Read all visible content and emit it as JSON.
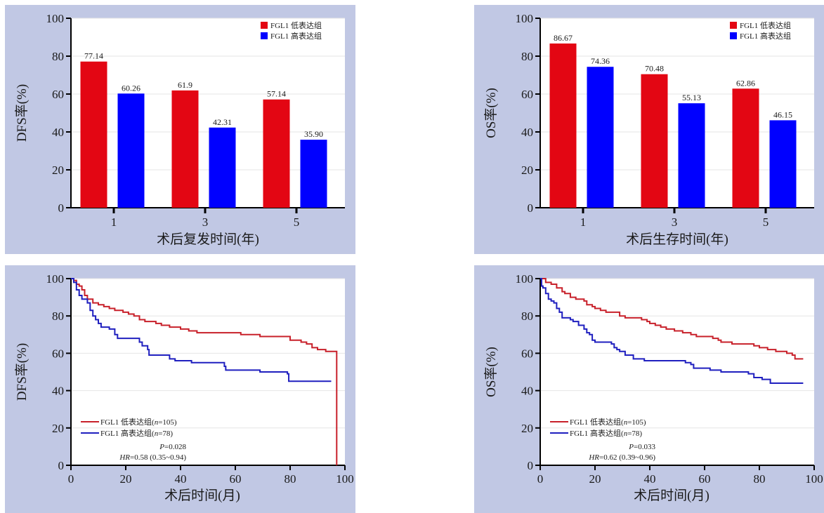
{
  "colors": {
    "panel_bg": "#c1c8e4",
    "plot_bg": "#ffffff",
    "low_bar": "#e30613",
    "high_bar": "#0000ff",
    "low_curve": "#c8202a",
    "high_curve": "#1f1fbf"
  },
  "chart_data": [
    {
      "id": "dfs-bar",
      "type": "bar",
      "categories": [
        "1",
        "3",
        "5"
      ],
      "series": [
        {
          "name": "FGL1 低表达组",
          "values": [
            77.14,
            61.9,
            57.14
          ],
          "labels": [
            "77.14",
            "61.9",
            "57.14"
          ]
        },
        {
          "name": "FGL1 高表达组",
          "values": [
            60.26,
            42.31,
            35.9
          ],
          "labels": [
            "60.26",
            "42.31",
            "35.90"
          ]
        }
      ],
      "xlabel": "术后复发时间(年)",
      "ylabel": "DFS率(%)",
      "ylim": [
        0,
        100
      ],
      "yticks": [
        0,
        20,
        40,
        60,
        80,
        100
      ],
      "grid": true,
      "legend_position": "top-right"
    },
    {
      "id": "os-bar",
      "type": "bar",
      "categories": [
        "1",
        "3",
        "5"
      ],
      "series": [
        {
          "name": "FGL1 低表达组",
          "values": [
            86.67,
            70.48,
            62.86
          ],
          "labels": [
            "86.67",
            "70.48",
            "62.86"
          ]
        },
        {
          "name": "FGL1 高表达组",
          "values": [
            74.36,
            55.13,
            46.15
          ],
          "labels": [
            "74.36",
            "55.13",
            "46.15"
          ]
        }
      ],
      "xlabel": "术后生存时间(年)",
      "ylabel": "OS率(%)",
      "ylim": [
        0,
        100
      ],
      "yticks": [
        0,
        20,
        40,
        60,
        80,
        100
      ],
      "grid": true,
      "legend_position": "top-right"
    },
    {
      "id": "dfs-km",
      "type": "line",
      "step": true,
      "series": [
        {
          "name": "FGL1 低表达组(n=105)",
          "name_prefix": "FGL1 低表达组(",
          "name_italic": "n",
          "name_suffix": "=105)",
          "points": [
            [
              0,
              100
            ],
            [
              1,
              99
            ],
            [
              2,
              97
            ],
            [
              3,
              96
            ],
            [
              4,
              94
            ],
            [
              5,
              91
            ],
            [
              6,
              89
            ],
            [
              8,
              87
            ],
            [
              10,
              86
            ],
            [
              12,
              85
            ],
            [
              14,
              84
            ],
            [
              16,
              83
            ],
            [
              19,
              82
            ],
            [
              21,
              81
            ],
            [
              23,
              80
            ],
            [
              25,
              78
            ],
            [
              27,
              77
            ],
            [
              31,
              76
            ],
            [
              33,
              75
            ],
            [
              36,
              74
            ],
            [
              40,
              73
            ],
            [
              43,
              72
            ],
            [
              46,
              71
            ],
            [
              60,
              71
            ],
            [
              62,
              70
            ],
            [
              69,
              69
            ],
            [
              80,
              67
            ],
            [
              84,
              66
            ],
            [
              86,
              65
            ],
            [
              88,
              63
            ],
            [
              90,
              62
            ],
            [
              93,
              61
            ],
            [
              96,
              61
            ],
            [
              97,
              61
            ],
            [
              97,
              0
            ]
          ]
        },
        {
          "name": "FGL1 高表达组(n=78)",
          "name_prefix": "FGL1 高表达组(",
          "name_italic": "n",
          "name_suffix": "=78)",
          "points": [
            [
              0,
              100
            ],
            [
              1,
              98
            ],
            [
              2,
              94
            ],
            [
              3,
              91
            ],
            [
              4,
              89
            ],
            [
              6,
              87
            ],
            [
              7,
              83
            ],
            [
              8,
              80
            ],
            [
              9,
              78
            ],
            [
              10,
              76
            ],
            [
              11,
              74
            ],
            [
              14,
              73
            ],
            [
              16,
              70
            ],
            [
              17,
              68
            ],
            [
              25,
              66
            ],
            [
              26,
              64
            ],
            [
              28,
              62
            ],
            [
              28.5,
              59
            ],
            [
              36,
              57
            ],
            [
              38,
              56
            ],
            [
              44,
              55
            ],
            [
              56,
              53
            ],
            [
              56.5,
              51
            ],
            [
              69,
              50
            ],
            [
              79,
              49
            ],
            [
              79.5,
              45
            ],
            [
              95,
              45
            ]
          ]
        }
      ],
      "annotations": {
        "p_prefix": "P",
        "p_value": "=0.028",
        "hr_prefix": "HR",
        "hr_value": "=0.58 (0.35~0.94)"
      },
      "xlabel": "术后时间(月)",
      "ylabel": "DFS率(%)",
      "xlim": [
        0,
        100
      ],
      "ylim": [
        0,
        100
      ],
      "xticks": [
        0,
        20,
        40,
        60,
        80,
        100
      ],
      "yticks": [
        0,
        20,
        40,
        60,
        80,
        100
      ],
      "grid": true,
      "legend_position": "bottom-left"
    },
    {
      "id": "os-km",
      "type": "line",
      "step": true,
      "series": [
        {
          "name": "FGL1 低表达组(n=105)",
          "name_prefix": "FGL1 低表达组(",
          "name_italic": "n",
          "name_suffix": "=105)",
          "points": [
            [
              0,
              100
            ],
            [
              2,
              98
            ],
            [
              4,
              97
            ],
            [
              6,
              95
            ],
            [
              8,
              93
            ],
            [
              9,
              92
            ],
            [
              11,
              90
            ],
            [
              13,
              89
            ],
            [
              16,
              88
            ],
            [
              17,
              86
            ],
            [
              19,
              85
            ],
            [
              20,
              84
            ],
            [
              22,
              83
            ],
            [
              24,
              82
            ],
            [
              29,
              80
            ],
            [
              31,
              79
            ],
            [
              37,
              78
            ],
            [
              39,
              77
            ],
            [
              40,
              76
            ],
            [
              42,
              75
            ],
            [
              44,
              74
            ],
            [
              46,
              73
            ],
            [
              49,
              72
            ],
            [
              52,
              71
            ],
            [
              55,
              70
            ],
            [
              57,
              69
            ],
            [
              63,
              68
            ],
            [
              65,
              67
            ],
            [
              66,
              66
            ],
            [
              70,
              65
            ],
            [
              78,
              64
            ],
            [
              80,
              63
            ],
            [
              83,
              62
            ],
            [
              86,
              61
            ],
            [
              90,
              60
            ],
            [
              92,
              59
            ],
            [
              93,
              57
            ],
            [
              96,
              57
            ]
          ]
        },
        {
          "name": "FGL1 高表达组(n=78)",
          "name_prefix": "FGL1 高表达组(",
          "name_italic": "n",
          "name_suffix": "=78)",
          "points": [
            [
              0,
              100
            ],
            [
              0.5,
              96
            ],
            [
              1,
              95
            ],
            [
              2,
              92
            ],
            [
              3,
              89
            ],
            [
              4,
              88
            ],
            [
              5,
              87
            ],
            [
              6,
              84
            ],
            [
              7,
              82
            ],
            [
              8,
              79
            ],
            [
              11,
              78
            ],
            [
              12,
              77
            ],
            [
              14,
              75
            ],
            [
              16,
              73
            ],
            [
              17,
              71
            ],
            [
              18,
              70
            ],
            [
              19,
              67
            ],
            [
              20,
              66
            ],
            [
              26,
              65
            ],
            [
              27,
              63
            ],
            [
              28,
              62
            ],
            [
              29,
              61
            ],
            [
              31,
              59
            ],
            [
              34,
              57
            ],
            [
              38,
              56
            ],
            [
              53,
              55
            ],
            [
              55,
              54
            ],
            [
              56,
              52
            ],
            [
              62,
              51
            ],
            [
              66,
              50
            ],
            [
              76,
              49
            ],
            [
              78,
              47
            ],
            [
              81,
              46
            ],
            [
              84,
              44
            ],
            [
              96,
              44
            ]
          ]
        }
      ],
      "annotations": {
        "p_prefix": "P",
        "p_value": "=0.033",
        "hr_prefix": "HR",
        "hr_value": "=0.62 (0.39~0.96)"
      },
      "xlabel": "术后时间(月)",
      "ylabel": "OS率(%)",
      "xlim": [
        0,
        100
      ],
      "ylim": [
        0,
        100
      ],
      "xticks": [
        0,
        20,
        40,
        60,
        80,
        100
      ],
      "yticks": [
        0,
        20,
        40,
        60,
        80,
        100
      ],
      "grid": true,
      "legend_position": "bottom-left"
    }
  ]
}
